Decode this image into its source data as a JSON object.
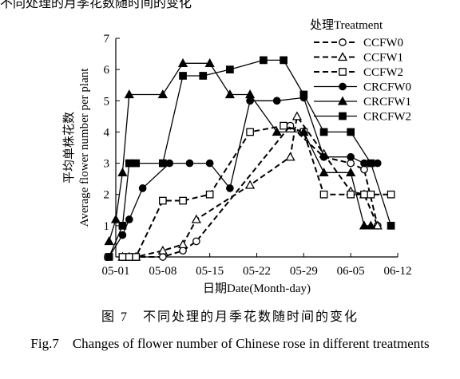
{
  "top_fragment": "不同处理的月季花数随时间的变化",
  "caption": {
    "cn": "图 7　不同处理的月季花数随时间的变化",
    "en": "Fig.7　Changes of flower number of Chinese rose in different treatments"
  },
  "chart_data": {
    "type": "line",
    "xlabel": "日期Date(Month-day)",
    "ylabel_cn": "平均单株花数",
    "ylabel_en": "Average flower number per plant",
    "legend_title": "处理Treatment",
    "legend_position": "top-right",
    "x_ticks": [
      "05-01",
      "05-08",
      "05-15",
      "05-22",
      "05-29",
      "06-05",
      "06-12"
    ],
    "x_range_days": [
      0,
      42
    ],
    "ylim": [
      0,
      7
    ],
    "y_ticks": [
      0,
      1,
      2,
      3,
      4,
      5,
      6,
      7
    ],
    "grid": false,
    "series": [
      {
        "name": "CCFW0",
        "line": "dashed",
        "marker": "circle-open",
        "x": [
          1,
          2,
          3,
          7,
          10,
          12,
          26,
          31,
          35,
          37,
          39
        ],
        "y": [
          0,
          0,
          0,
          0,
          0.2,
          0.5,
          4.2,
          3.2,
          3.0,
          2.8,
          1.0
        ]
      },
      {
        "name": "CCFW1",
        "line": "dashed",
        "marker": "triangle-open",
        "x": [
          1,
          2,
          3,
          7,
          10,
          12,
          20,
          26,
          27,
          31,
          35,
          37,
          39
        ],
        "y": [
          0,
          0,
          0,
          0.2,
          0.4,
          1.2,
          2.3,
          3.2,
          4.5,
          3.3,
          2.1,
          2.0,
          1.0
        ]
      },
      {
        "name": "CCFW2",
        "line": "dashed",
        "marker": "square-open",
        "x": [
          1,
          2,
          3,
          7,
          10,
          14,
          20,
          25,
          28,
          31,
          35,
          37,
          38,
          41
        ],
        "y": [
          0,
          0,
          0,
          1.8,
          1.8,
          2.0,
          4.0,
          4.2,
          4.0,
          2.0,
          2.0,
          2.0,
          2.0,
          2.0
        ]
      },
      {
        "name": "CRCFW0",
        "line": "solid",
        "marker": "circle-filled",
        "x": [
          -1,
          1,
          2,
          4,
          8,
          11,
          14,
          17,
          20,
          24,
          28,
          31,
          35,
          37,
          39
        ],
        "y": [
          0,
          0.7,
          1.2,
          2.2,
          3.0,
          3.0,
          3.0,
          2.2,
          5.0,
          5.0,
          5.1,
          3.2,
          3.2,
          3.0,
          3.0
        ]
      },
      {
        "name": "CRCFW1",
        "line": "solid",
        "marker": "triangle-filled",
        "x": [
          -1,
          0,
          1,
          2,
          7,
          10,
          14,
          17,
          20,
          24,
          28,
          31,
          35,
          37,
          38
        ],
        "y": [
          0.5,
          1.2,
          2.7,
          5.2,
          5.2,
          6.2,
          6.2,
          5.2,
          5.2,
          4.0,
          4.0,
          2.7,
          2.7,
          1.0,
          1.0
        ]
      },
      {
        "name": "CRCFW2",
        "line": "solid",
        "marker": "square-filled",
        "x": [
          -1,
          1,
          2,
          3,
          7,
          10,
          13,
          17,
          22,
          25,
          28,
          31,
          35,
          38,
          41
        ],
        "y": [
          0,
          1.0,
          3.0,
          3.0,
          3.0,
          5.8,
          5.8,
          6.0,
          6.3,
          6.3,
          5.2,
          4.0,
          4.0,
          3.0,
          1.0
        ]
      }
    ]
  }
}
